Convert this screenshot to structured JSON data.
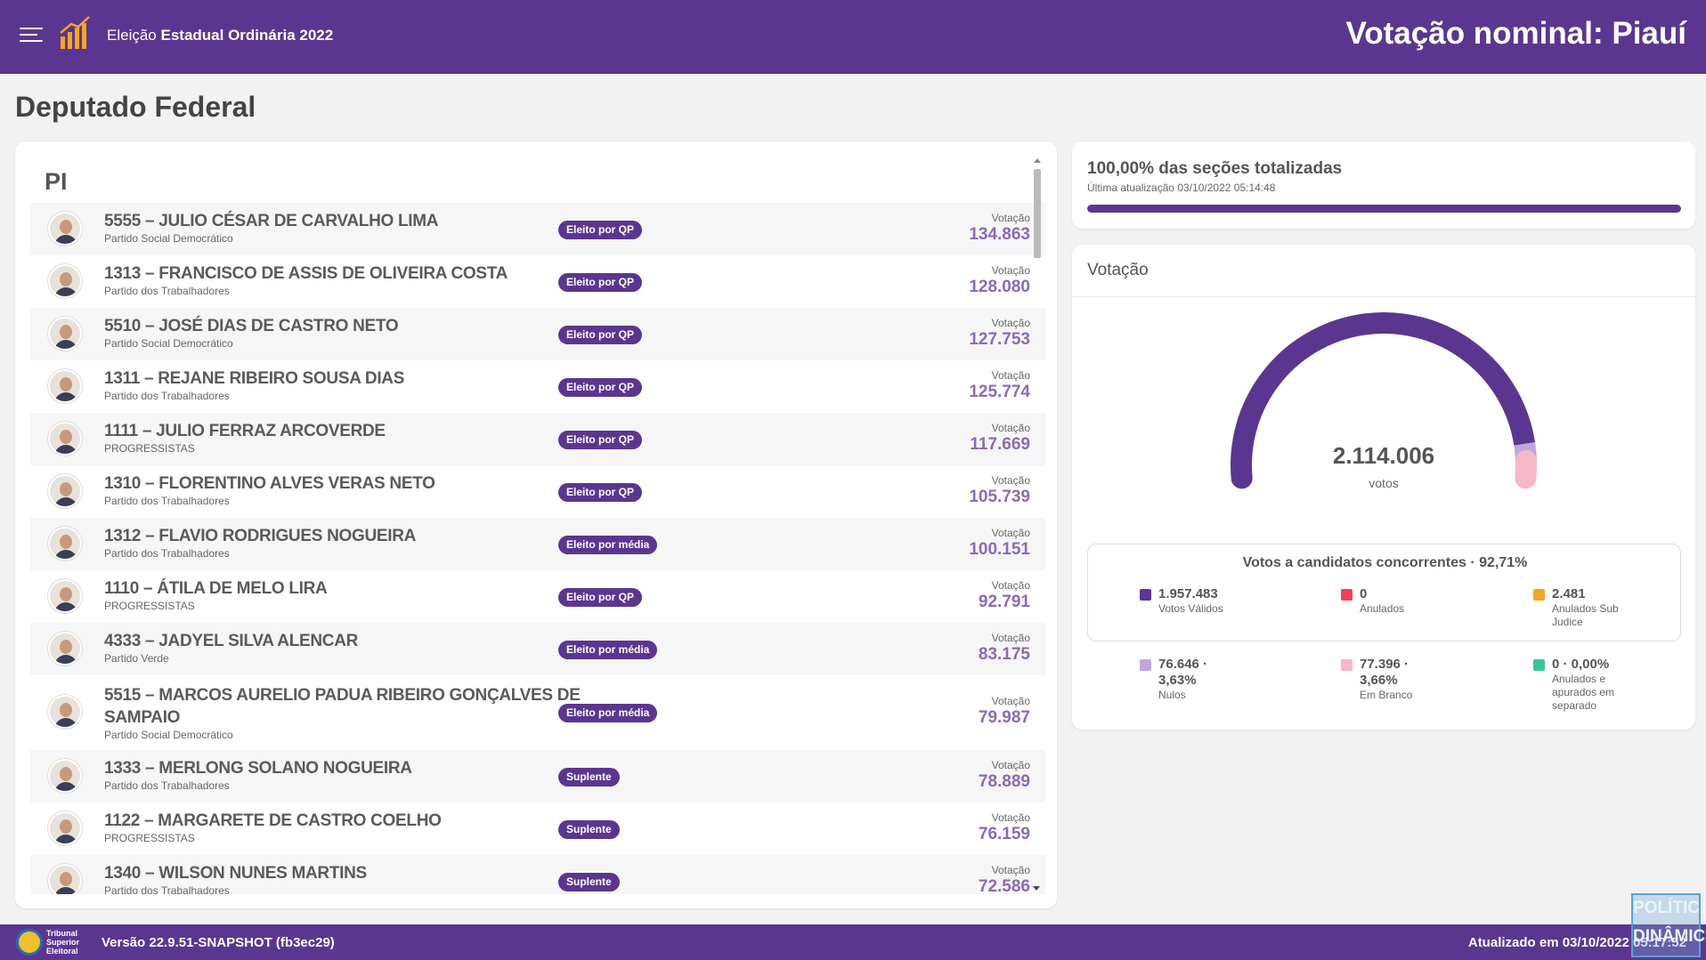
{
  "header": {
    "app_title_prefix": "Eleição",
    "app_title_bold": "Estadual Ordinária 2022",
    "page_heading": "Votação nominal: Piauí"
  },
  "section_title": "Deputado Federal",
  "list": {
    "state": "PI",
    "votes_label": "Votação",
    "candidates": [
      {
        "name": "5555 – JULIO CÉSAR DE CARVALHO LIMA",
        "party": "Partido Social Democrático",
        "status": "Eleito por QP",
        "votes": "134.863"
      },
      {
        "name": "1313 – FRANCISCO DE ASSIS DE OLIVEIRA COSTA",
        "party": "Partido dos Trabalhadores",
        "status": "Eleito por QP",
        "votes": "128.080"
      },
      {
        "name": "5510 – JOSÉ DIAS DE CASTRO NETO",
        "party": "Partido Social Democrático",
        "status": "Eleito por QP",
        "votes": "127.753"
      },
      {
        "name": "1311 – REJANE RIBEIRO SOUSA DIAS",
        "party": "Partido dos Trabalhadores",
        "status": "Eleito por QP",
        "votes": "125.774"
      },
      {
        "name": "1111 – JULIO FERRAZ ARCOVERDE",
        "party": "PROGRESSISTAS",
        "status": "Eleito por QP",
        "votes": "117.669"
      },
      {
        "name": "1310 – FLORENTINO ALVES VERAS NETO",
        "party": "Partido dos Trabalhadores",
        "status": "Eleito por QP",
        "votes": "105.739"
      },
      {
        "name": "1312 – FLAVIO RODRIGUES NOGUEIRA",
        "party": "Partido dos Trabalhadores",
        "status": "Eleito por média",
        "votes": "100.151"
      },
      {
        "name": "1110 – ÁTILA DE MELO LIRA",
        "party": "PROGRESSISTAS",
        "status": "Eleito por QP",
        "votes": "92.791"
      },
      {
        "name": "4333 – JADYEL SILVA ALENCAR",
        "party": "Partido Verde",
        "status": "Eleito por média",
        "votes": "83.175"
      },
      {
        "name": "5515 – MARCOS AURELIO PADUA RIBEIRO GONÇALVES DE",
        "name2": "SAMPAIO",
        "party": "Partido Social Democrático",
        "status": "Eleito por média",
        "votes": "79.987"
      },
      {
        "name": "1333 – MERLONG SOLANO NOGUEIRA",
        "party": "Partido dos Trabalhadores",
        "status": "Suplente",
        "votes": "78.889"
      },
      {
        "name": "1122 – MARGARETE DE CASTRO COELHO",
        "party": "PROGRESSISTAS",
        "status": "Suplente",
        "votes": "76.159"
      },
      {
        "name": "1340 – WILSON NUNES MARTINS",
        "party": "Partido dos Trabalhadores",
        "status": "Suplente",
        "votes": "72.586"
      }
    ]
  },
  "progress": {
    "title": "100,00% das seções totalizadas",
    "subtitle": "Última atualização 03/10/2022 05:14:48",
    "percent": 100
  },
  "votacao": {
    "title": "Votação",
    "total": "2.114.006",
    "total_label": "votos",
    "gauge_fractions": {
      "validos": 0.9271,
      "nulos": 0.0363,
      "brancos": 0.0366
    },
    "concorrentes_title": "Votos a candidatos concorrentes · 92,71%",
    "legend": [
      {
        "value": "1.957.483",
        "label": "Votos Válidos",
        "color": "#5b3690"
      },
      {
        "value": "0",
        "label": "Anulados",
        "color": "#f0405a"
      },
      {
        "value": "2.481",
        "label": "Anulados Sub Judice",
        "color": "#f5a623"
      },
      {
        "value": "76.646 · 3,63%",
        "label": "Nulos",
        "color": "#c3a6d9"
      },
      {
        "value": "77.396 · 3,66%",
        "label": "Em Branco",
        "color": "#f7b9c8"
      },
      {
        "value": "0 · 0,00%",
        "label": "Anulados e apurados em separado",
        "color": "#3cc39a"
      }
    ]
  },
  "footer": {
    "tse_line1": "Tribunal",
    "tse_line2": "Superior",
    "tse_line3": "Eleitoral",
    "version": "Versão 22.9.51-SNAPSHOT (fb3ec29)",
    "updated": "Atualizado em 03/10/2022 05:17:52"
  },
  "watermark": {
    "line1": "POLÍTICA",
    "line2": "DINÂMICA"
  }
}
